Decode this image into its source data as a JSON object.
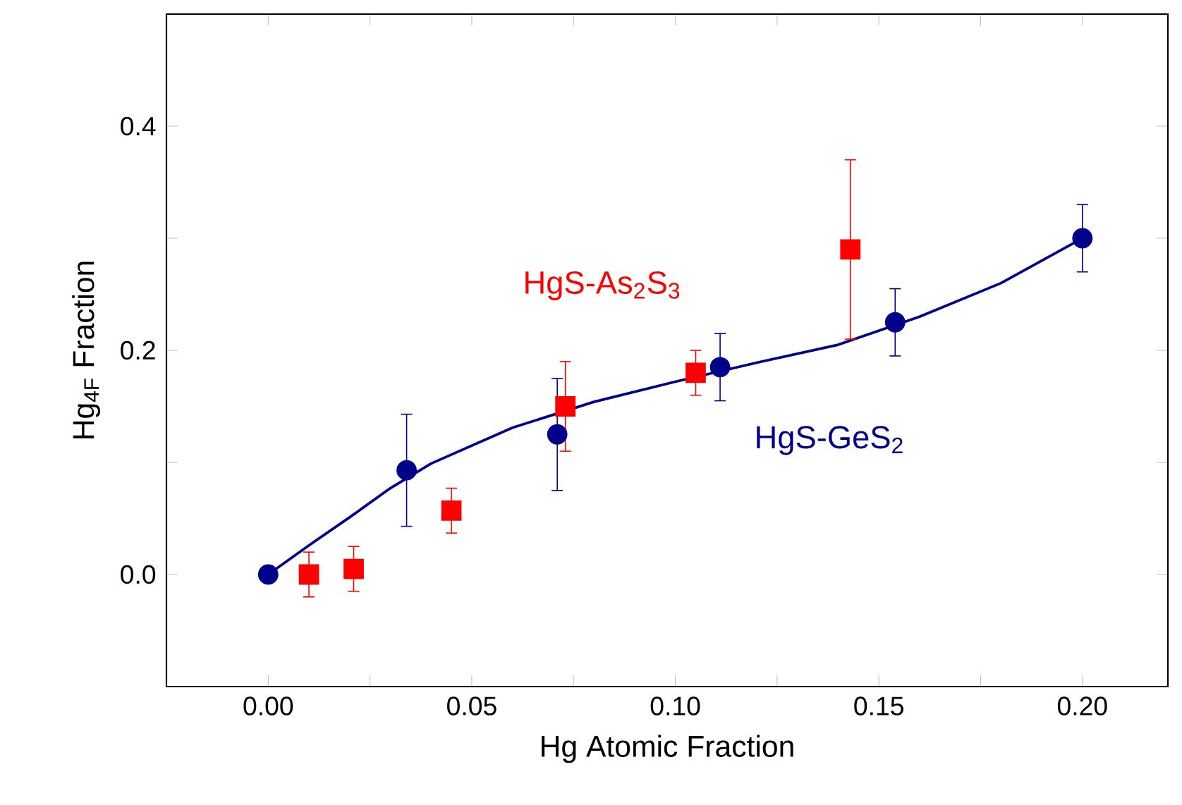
{
  "chart_data": {
    "type": "scatter",
    "xlabel": "Hg Atomic Fraction",
    "ylabel": "Hg$_{4F}$ Fraction",
    "xlim": [
      -0.025,
      0.221
    ],
    "ylim": [
      -0.1,
      0.5
    ],
    "xticks": [
      {
        "value": 0,
        "label": "0.00"
      },
      {
        "value": 0.025,
        "label": null
      },
      {
        "value": 0.05,
        "label": "0.05"
      },
      {
        "value": 0.075,
        "label": null
      },
      {
        "value": 0.1,
        "label": "0.10"
      },
      {
        "value": 0.125,
        "label": null
      },
      {
        "value": 0.15,
        "label": "0.15"
      },
      {
        "value": 0.175,
        "label": null
      },
      {
        "value": 0.2,
        "label": "0.20"
      }
    ],
    "yticks": [
      {
        "value": 0,
        "label": "0.0"
      },
      {
        "value": 0.1,
        "label": null
      },
      {
        "value": 0.2,
        "label": "0.2"
      },
      {
        "value": 0.3,
        "label": null
      },
      {
        "value": 0.4,
        "label": "0.4"
      }
    ],
    "grid": false,
    "legend": false,
    "series": [
      {
        "type": "line",
        "color": "#00008b",
        "marker": "none",
        "line_style": "solid",
        "x": [
          0,
          0.01,
          0.02,
          0.03,
          0.04,
          0.06,
          0.08,
          0.1,
          0.12,
          0.14,
          0.16,
          0.18,
          0.2
        ],
        "values": [
          0,
          0.026,
          0.051,
          0.077,
          0.099,
          0.131,
          0.154,
          0.172,
          0.189,
          0.205,
          0.23,
          0.26,
          0.3
        ]
      },
      {
        "name": "HgS-As$_{2}$S$_{3}$",
        "color": "#ff0000",
        "marker": "square",
        "x": [
          0.01,
          0.021,
          0.045,
          0.073,
          0.105,
          0.143
        ],
        "values": [
          0,
          0.005,
          0.057,
          0.15,
          0.18,
          0.29
        ],
        "errors": [
          0.02,
          0.02,
          0.02,
          0.04,
          0.02,
          0.08
        ]
      },
      {
        "name": "HgS-GeS$_{2}$",
        "color": "#00008b",
        "marker": "circle",
        "x": [
          0,
          0.034,
          0.071,
          0.111,
          0.154,
          0.2
        ],
        "values": [
          0,
          0.093,
          0.125,
          0.185,
          0.225,
          0.3
        ],
        "errors": [
          null,
          0.05,
          0.05,
          0.03,
          0.03,
          0.03
        ]
      }
    ]
  }
}
